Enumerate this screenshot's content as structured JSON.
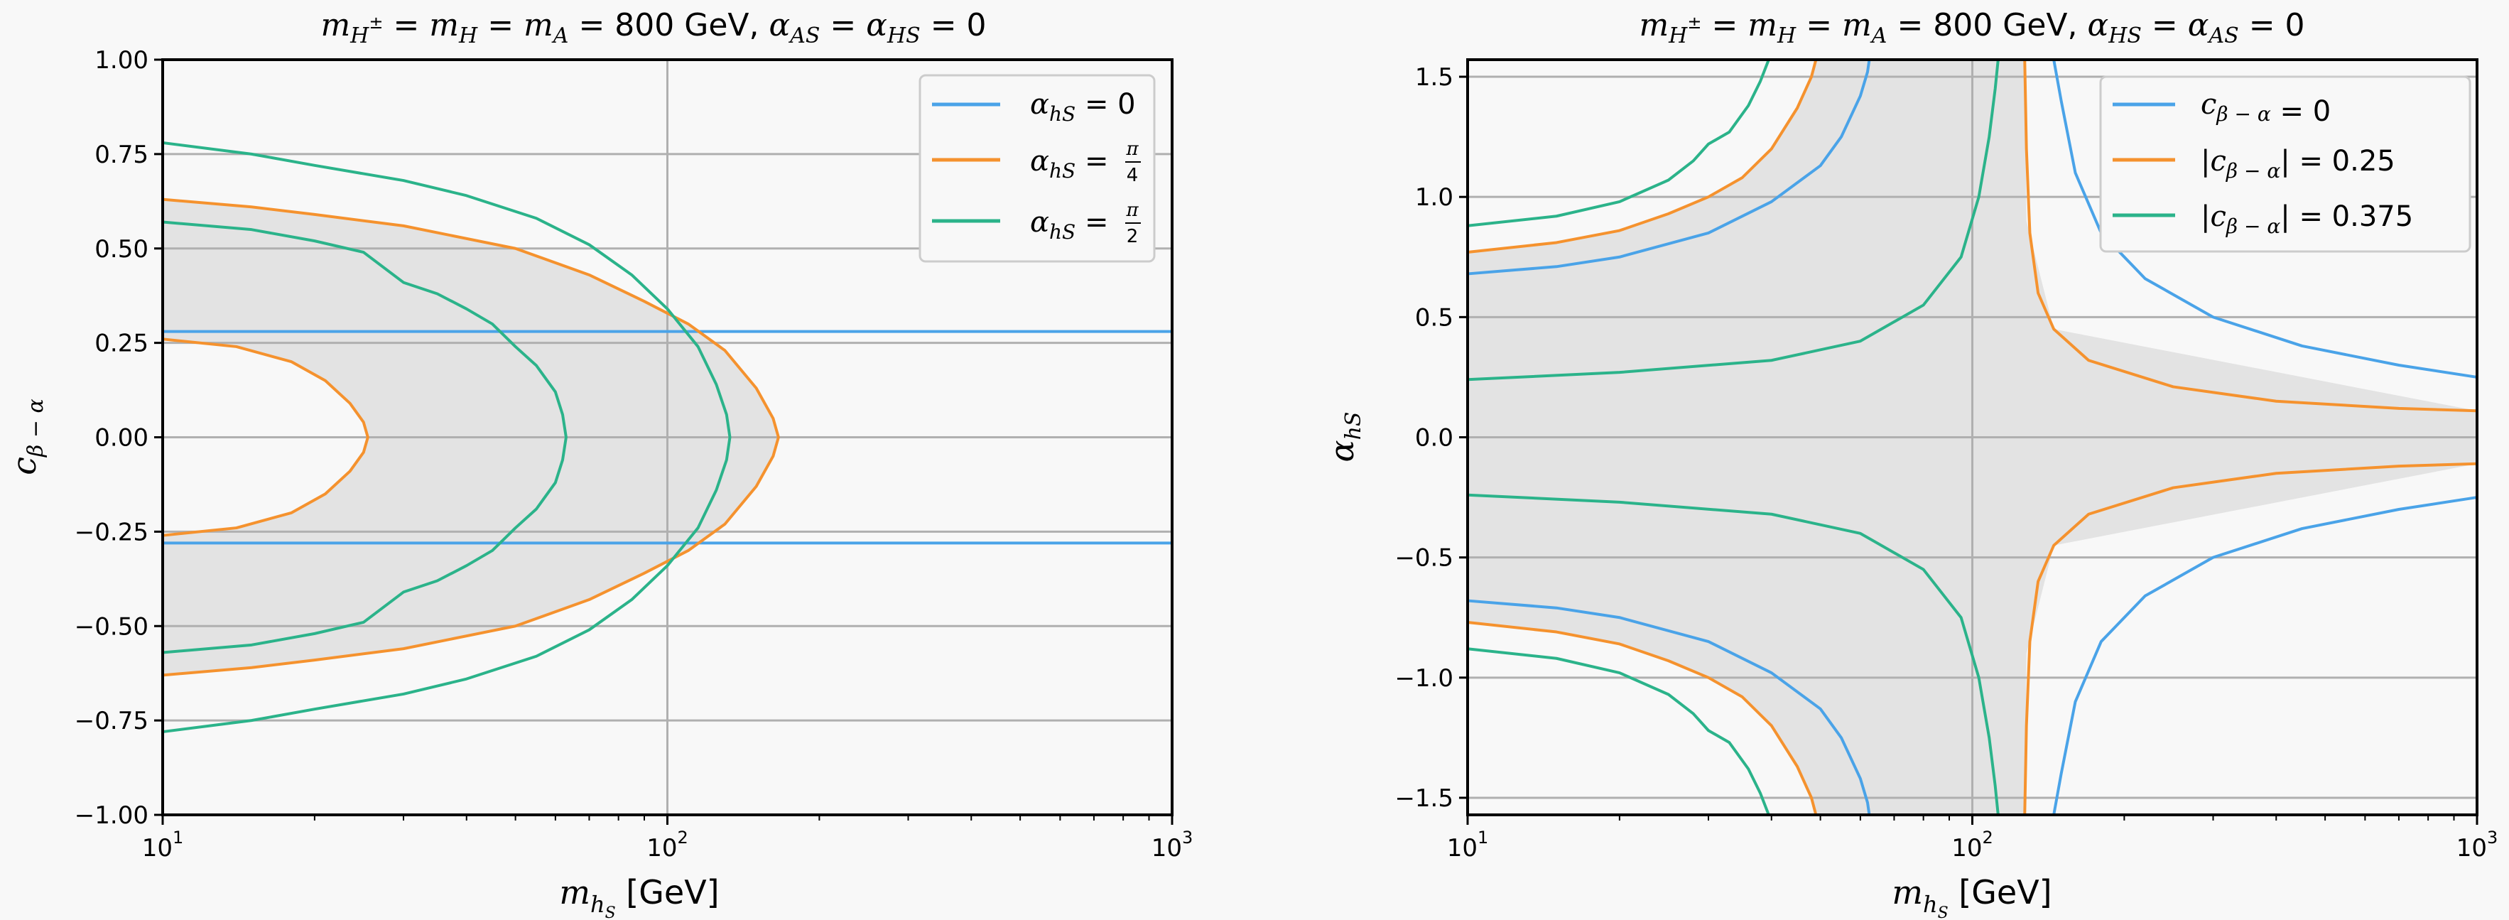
{
  "chart_data": [
    {
      "type": "line",
      "title": "m_{H±} = m_H = m_A = 800 GeV, α_AS = α_HS = 0",
      "title_parts": {
        "lhs": "m",
        "sub1": "H",
        "sup1": "±",
        "eq1": " = ",
        "m2": "m",
        "sub2": "H",
        "eq2": " = ",
        "m3": "m",
        "sub3": "A",
        "rest": " = 800 GeV, ",
        "a1": "α",
        "asub1": "AS",
        "eq3": " = ",
        "a2": "α",
        "asub2": "HS",
        "end": " = 0"
      },
      "xlabel": "m_{h_S} [GeV]",
      "xlabel_parts": {
        "m": "m",
        "sub": "h",
        "subsub": "S",
        "unit": " [GeV]"
      },
      "ylabel": "c_{β−α}",
      "ylabel_parts": {
        "c": "c",
        "sub": "β − α"
      },
      "xscale": "log",
      "xlim": [
        10,
        1000
      ],
      "ylim": [
        -1.0,
        1.0
      ],
      "xticks": [
        {
          "base": "10",
          "exp": "1",
          "value": 10
        },
        {
          "base": "10",
          "exp": "2",
          "value": 100
        },
        {
          "base": "10",
          "exp": "3",
          "value": 1000
        }
      ],
      "yticks": [
        "1.00",
        "0.75",
        "0.50",
        "0.25",
        "0.00",
        "−0.25",
        "−0.50",
        "−0.75",
        "−1.00"
      ],
      "ytick_values": [
        1.0,
        0.75,
        0.5,
        0.25,
        0.0,
        -0.25,
        -0.5,
        -0.75,
        -1.0
      ],
      "grid": true,
      "legend_position": "top-right",
      "series": [
        {
          "name": "α_hS = 0",
          "legend": {
            "lhs": "α",
            "sub": "hS",
            "rhs": " = 0",
            "frac": null
          },
          "color": "#4aa3e8",
          "lines": [
            {
              "x": [
                10,
                1000
              ],
              "y": [
                0.28,
                0.28
              ]
            },
            {
              "x": [
                10,
                1000
              ],
              "y": [
                -0.28,
                -0.28
              ]
            }
          ]
        },
        {
          "name": "α_hS = π/4",
          "legend": {
            "lhs": "α",
            "sub": "hS",
            "rhs": " = ",
            "frac": [
              "π",
              "4"
            ]
          },
          "color": "#f5922e",
          "lines": [
            {
              "x": [
                10,
                15,
                20,
                30,
                50,
                70,
                90,
                110,
                130,
                150,
                162,
                166,
                162,
                150,
                130,
                110,
                90,
                70,
                50,
                30,
                20,
                15,
                10
              ],
              "y": [
                0.63,
                0.61,
                0.59,
                0.56,
                0.5,
                0.43,
                0.36,
                0.3,
                0.23,
                0.13,
                0.05,
                0.0,
                -0.05,
                -0.13,
                -0.23,
                -0.3,
                -0.36,
                -0.43,
                -0.5,
                -0.56,
                -0.59,
                -0.61,
                -0.63
              ]
            },
            {
              "x": [
                10,
                14,
                18,
                21,
                23.5,
                25,
                25.5,
                25,
                23.5,
                21,
                18,
                14,
                10
              ],
              "y": [
                0.26,
                0.24,
                0.2,
                0.15,
                0.09,
                0.04,
                0.0,
                -0.04,
                -0.09,
                -0.15,
                -0.2,
                -0.24,
                -0.26
              ]
            }
          ]
        },
        {
          "name": "α_hS = π/2",
          "legend": {
            "lhs": "α",
            "sub": "hS",
            "rhs": " = ",
            "frac": [
              "π",
              "2"
            ]
          },
          "color": "#2bb38a",
          "lines": [
            {
              "x": [
                10,
                15,
                20,
                30,
                40,
                55,
                70,
                85,
                100,
                115,
                125,
                131,
                133,
                131,
                125,
                115,
                100,
                85,
                70,
                55,
                40,
                30,
                20,
                15,
                10
              ],
              "y": [
                0.78,
                0.75,
                0.72,
                0.68,
                0.64,
                0.58,
                0.51,
                0.43,
                0.34,
                0.24,
                0.14,
                0.06,
                0.0,
                -0.06,
                -0.14,
                -0.24,
                -0.34,
                -0.43,
                -0.51,
                -0.58,
                -0.64,
                -0.68,
                -0.72,
                -0.75,
                -0.78
              ]
            },
            {
              "x": [
                10,
                15,
                20,
                25,
                30,
                35,
                40,
                45,
                50,
                55,
                60,
                62,
                63,
                62,
                60,
                55,
                50,
                45,
                40,
                35,
                30,
                25,
                20,
                15,
                10
              ],
              "y": [
                0.57,
                0.55,
                0.52,
                0.49,
                0.41,
                0.38,
                0.34,
                0.3,
                0.24,
                0.19,
                0.12,
                0.06,
                0.0,
                -0.06,
                -0.12,
                -0.19,
                -0.24,
                -0.3,
                -0.34,
                -0.38,
                -0.41,
                -0.49,
                -0.52,
                -0.55,
                -0.57
              ]
            }
          ]
        }
      ],
      "shaded_regions": "gray allowed regions between contours"
    },
    {
      "type": "line",
      "title": "m_{H±} = m_H = m_A = 800 GeV, α_HS = α_AS = 0",
      "title_parts": {
        "lhs": "m",
        "sub1": "H",
        "sup1": "±",
        "eq1": " = ",
        "m2": "m",
        "sub2": "H",
        "eq2": " = ",
        "m3": "m",
        "sub3": "A",
        "rest": " = 800 GeV, ",
        "a1": "α",
        "asub1": "HS",
        "eq3": " = ",
        "a2": "α",
        "asub2": "AS",
        "end": " = 0"
      },
      "xlabel": "m_{h_S} [GeV]",
      "xlabel_parts": {
        "m": "m",
        "sub": "h",
        "subsub": "S",
        "unit": " [GeV]"
      },
      "ylabel": "α_hS",
      "ylabel_parts": {
        "a": "α",
        "sub": "hS"
      },
      "xscale": "log",
      "xlim": [
        10,
        1000
      ],
      "ylim": [
        -1.571,
        1.571
      ],
      "xticks": [
        {
          "base": "10",
          "exp": "1",
          "value": 10
        },
        {
          "base": "10",
          "exp": "2",
          "value": 100
        },
        {
          "base": "10",
          "exp": "3",
          "value": 1000
        }
      ],
      "yticks": [
        "1.5",
        "1.0",
        "0.5",
        "0.0",
        "−0.5",
        "−1.0",
        "−1.5"
      ],
      "ytick_values": [
        1.5,
        1.0,
        0.5,
        0.0,
        -0.5,
        -1.0,
        -1.5
      ],
      "grid": true,
      "legend_position": "top-right",
      "series": [
        {
          "name": "c_{β−α} = 0",
          "legend": {
            "pre": "",
            "c": "c",
            "sub": "β − α",
            "post": "",
            "rhs": " = 0"
          },
          "color": "#4aa3e8",
          "lines": [
            {
              "x": [
                10,
                15,
                20,
                30,
                40,
                50,
                55,
                60,
                62,
                62.5
              ],
              "y": [
                0.68,
                0.71,
                0.75,
                0.85,
                0.98,
                1.13,
                1.25,
                1.42,
                1.52,
                1.571
              ]
            },
            {
              "x": [
                10,
                15,
                20,
                30,
                40,
                50,
                55,
                60,
                62,
                62.5
              ],
              "y": [
                -0.68,
                -0.71,
                -0.75,
                -0.85,
                -0.98,
                -1.13,
                -1.25,
                -1.42,
                -1.52,
                -1.571
              ]
            },
            {
              "x": [
                145,
                150,
                160,
                180,
                220,
                300,
                450,
                700,
                1000
              ],
              "y": [
                1.571,
                1.4,
                1.1,
                0.85,
                0.66,
                0.5,
                0.38,
                0.3,
                0.25
              ]
            },
            {
              "x": [
                145,
                150,
                160,
                180,
                220,
                300,
                450,
                700,
                1000
              ],
              "y": [
                -1.571,
                -1.4,
                -1.1,
                -0.85,
                -0.66,
                -0.5,
                -0.38,
                -0.3,
                -0.25
              ]
            }
          ]
        },
        {
          "name": "|c_{β−α}| = 0.25",
          "legend": {
            "pre": "|",
            "c": "c",
            "sub": "β − α",
            "post": "|",
            "rhs": " = 0.25"
          },
          "color": "#f5922e",
          "lines": [
            {
              "x": [
                10,
                15,
                20,
                25,
                30,
                35,
                40,
                45,
                48,
                49
              ],
              "y": [
                0.77,
                0.81,
                0.86,
                0.93,
                1.0,
                1.08,
                1.2,
                1.37,
                1.5,
                1.571
              ]
            },
            {
              "x": [
                10,
                15,
                20,
                25,
                30,
                35,
                40,
                45,
                48,
                49
              ],
              "y": [
                -0.77,
                -0.81,
                -0.86,
                -0.93,
                -1.0,
                -1.08,
                -1.2,
                -1.37,
                -1.5,
                -1.571
              ]
            },
            {
              "x": [
                127,
                128,
                130,
                135,
                145,
                170,
                250,
                400,
                700,
                1000
              ],
              "y": [
                1.571,
                1.2,
                0.85,
                0.6,
                0.45,
                0.32,
                0.21,
                0.15,
                0.12,
                0.11
              ]
            },
            {
              "x": [
                127,
                128,
                130,
                135,
                145,
                170,
                250,
                400,
                700,
                1000
              ],
              "y": [
                -1.571,
                -1.2,
                -0.85,
                -0.6,
                -0.45,
                -0.32,
                -0.21,
                -0.15,
                -0.12,
                -0.11
              ]
            }
          ]
        },
        {
          "name": "|c_{β−α}| = 0.375",
          "legend": {
            "pre": "|",
            "c": "c",
            "sub": "β − α",
            "post": "|",
            "rhs": " = 0.375"
          },
          "color": "#2bb38a",
          "lines": [
            {
              "x": [
                10,
                15,
                20,
                25,
                28,
                30,
                33,
                36,
                38,
                39.5
              ],
              "y": [
                0.88,
                0.92,
                0.98,
                1.07,
                1.15,
                1.22,
                1.27,
                1.38,
                1.48,
                1.571
              ]
            },
            {
              "x": [
                10,
                15,
                20,
                25,
                28,
                30,
                33,
                36,
                38,
                39.5
              ],
              "y": [
                -0.88,
                -0.92,
                -0.98,
                -1.07,
                -1.15,
                -1.22,
                -1.27,
                -1.38,
                -1.48,
                -1.571
              ]
            },
            {
              "x": [
                10,
                20,
                40,
                60,
                80,
                95,
                103,
                108,
                111,
                112.5
              ],
              "y": [
                0.24,
                0.27,
                0.32,
                0.4,
                0.55,
                0.75,
                1.0,
                1.25,
                1.45,
                1.571
              ]
            },
            {
              "x": [
                10,
                20,
                40,
                60,
                80,
                95,
                103,
                108,
                111,
                112.5
              ],
              "y": [
                -0.24,
                -0.27,
                -0.32,
                -0.4,
                -0.55,
                -0.75,
                -1.0,
                -1.25,
                -1.45,
                -1.571
              ]
            }
          ]
        }
      ],
      "shaded_regions": "gray allowed regions between contours"
    }
  ]
}
